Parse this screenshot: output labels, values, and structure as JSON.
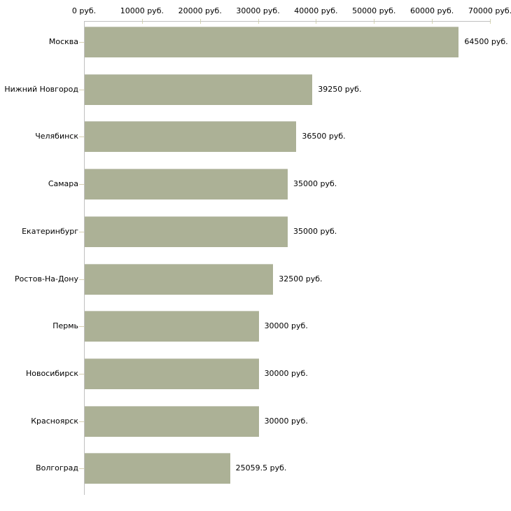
{
  "chart_data": {
    "type": "bar",
    "orientation": "horizontal",
    "title": "",
    "xlabel": "",
    "ylabel": "",
    "xlim": [
      0,
      70000
    ],
    "x_tick_labels": [
      "0 руб.",
      "10000 руб.",
      "20000 руб.",
      "30000 руб.",
      "40000 руб.",
      "50000 руб.",
      "60000 руб.",
      "70000 руб."
    ],
    "x_tick_values": [
      0,
      10000,
      20000,
      30000,
      40000,
      50000,
      60000,
      70000
    ],
    "categories": [
      "Москва",
      "Нижний Новгород",
      "Челябинск",
      "Самара",
      "Екатеринбург",
      "Ростов-На-Дону",
      "Пермь",
      "Новосибирск",
      "Красноярск",
      "Волгоград"
    ],
    "values": [
      64500,
      39250,
      36500,
      35000,
      35000,
      32500,
      30000,
      30000,
      30000,
      25059.5
    ],
    "value_labels": [
      "64500 руб.",
      "39250 руб.",
      "36500 руб.",
      "35000 руб.",
      "35000 руб.",
      "32500 руб.",
      "30000 руб.",
      "30000 руб.",
      "30000 руб.",
      "25059.5 руб."
    ],
    "legend": null,
    "grid": false,
    "colors": {
      "bar_fill": "#acb196",
      "bar_top_edge": "#c9ccbd",
      "axis_line": "#c0c0c0",
      "axis_tick": "#d6d6b0",
      "text": "#000000",
      "background": "#ffffff"
    }
  }
}
